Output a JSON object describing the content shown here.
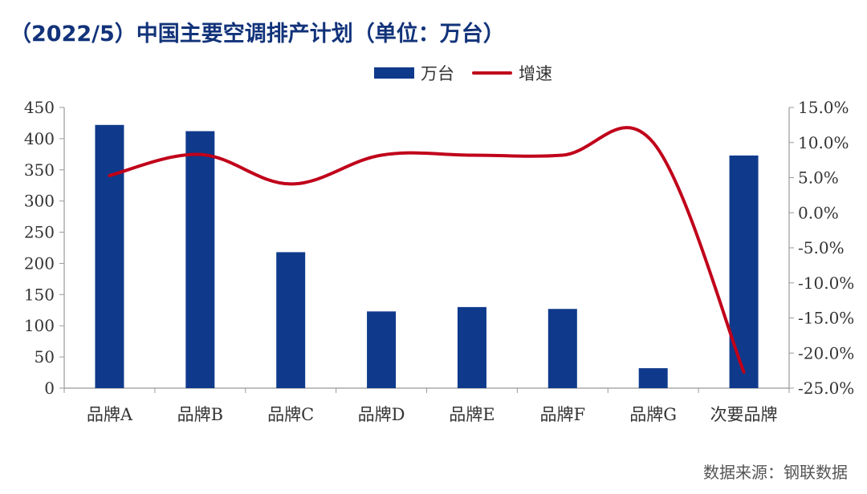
{
  "title": "（2022/5）中国主要空调排产计划（单位：万台）",
  "source": "数据来源：钢联数据",
  "chart_data": {
    "type": "bar",
    "categories": [
      "品牌A",
      "品牌B",
      "品牌C",
      "品牌D",
      "品牌E",
      "品牌F",
      "品牌G",
      "次要品牌"
    ],
    "series": [
      {
        "name": "万台",
        "type": "bar",
        "axis": "left",
        "color": "#0f3a8c",
        "values": [
          422,
          412,
          218,
          123,
          130,
          127,
          32,
          373
        ]
      },
      {
        "name": "增速",
        "type": "line",
        "axis": "right",
        "color": "#c0001a",
        "values": [
          5.3,
          8.3,
          4.1,
          8.2,
          8.2,
          8.2,
          10.0,
          -22.7
        ]
      }
    ],
    "y_left": {
      "min": 0,
      "max": 450,
      "ticks": [
        "0",
        "50",
        "100",
        "150",
        "200",
        "250",
        "300",
        "350",
        "400",
        "450"
      ]
    },
    "y_right": {
      "min": -25,
      "max": 15,
      "ticks": [
        "-25.0%",
        "-20.0%",
        "-15.0%",
        "-10.0%",
        "-5.0%",
        "0.0%",
        "5.0%",
        "10.0%",
        "15.0%"
      ]
    },
    "legend_position": "top-center",
    "grid": false
  }
}
